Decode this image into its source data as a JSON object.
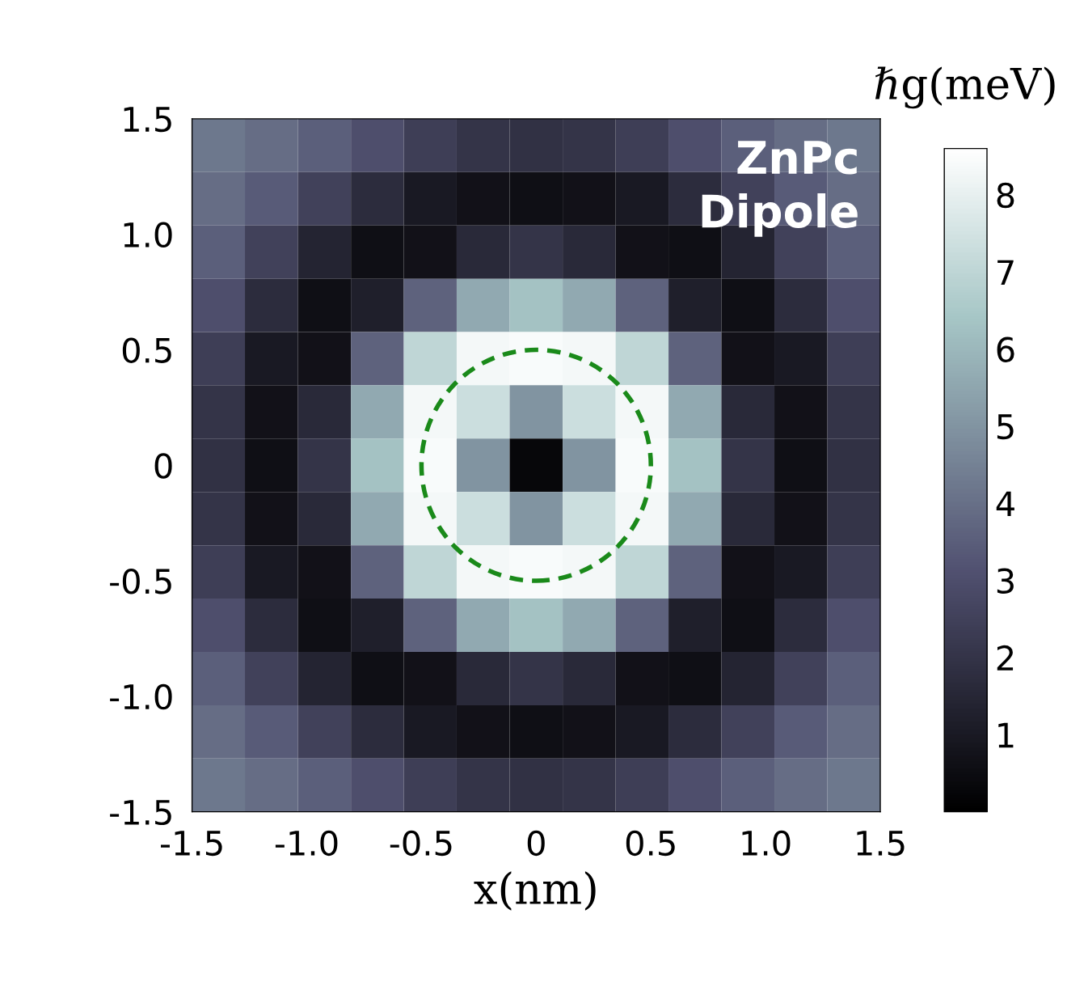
{
  "chart_data": {
    "type": "heatmap",
    "x": [
      -1.385,
      -1.154,
      -0.923,
      -0.692,
      -0.462,
      -0.231,
      0,
      0.231,
      0.462,
      0.692,
      0.923,
      1.154,
      1.385
    ],
    "y": [
      1.385,
      1.154,
      0.923,
      0.692,
      0.462,
      0.231,
      0,
      -0.231,
      -0.462,
      -0.692,
      -0.923,
      -1.154,
      -1.385
    ],
    "cells": [
      [
        4.2,
        3.9,
        3.5,
        3.0,
        2.4,
        2.0,
        1.9,
        2.0,
        2.4,
        3.0,
        3.5,
        3.9,
        4.2
      ],
      [
        3.9,
        3.4,
        2.5,
        1.7,
        1.0,
        0.7,
        0.6,
        0.7,
        1.0,
        1.7,
        2.5,
        3.4,
        3.9
      ],
      [
        3.5,
        2.5,
        1.4,
        0.6,
        0.7,
        1.6,
        2.0,
        1.6,
        0.7,
        0.6,
        1.4,
        2.5,
        3.5
      ],
      [
        3.0,
        1.7,
        0.6,
        1.2,
        3.6,
        5.6,
        6.3,
        5.6,
        3.6,
        1.2,
        0.6,
        1.7,
        3.0
      ],
      [
        2.4,
        1.0,
        0.7,
        3.6,
        7.0,
        8.3,
        8.4,
        8.3,
        7.0,
        3.6,
        0.7,
        1.0,
        2.4
      ],
      [
        2.0,
        0.7,
        1.6,
        5.6,
        8.3,
        7.3,
        5.0,
        7.3,
        8.3,
        5.6,
        1.6,
        0.7,
        2.0
      ],
      [
        1.9,
        0.6,
        2.0,
        6.3,
        8.4,
        5.0,
        0.3,
        5.0,
        8.4,
        6.3,
        2.0,
        0.6,
        1.9
      ],
      [
        2.0,
        0.7,
        1.6,
        5.6,
        8.3,
        7.3,
        5.0,
        7.3,
        8.3,
        5.6,
        1.6,
        0.7,
        2.0
      ],
      [
        2.4,
        1.0,
        0.7,
        3.6,
        7.0,
        8.3,
        8.4,
        8.3,
        7.0,
        3.6,
        0.7,
        1.0,
        2.4
      ],
      [
        3.0,
        1.7,
        0.6,
        1.2,
        3.6,
        5.6,
        6.3,
        5.6,
        3.6,
        1.2,
        0.6,
        1.7,
        3.0
      ],
      [
        3.5,
        2.5,
        1.4,
        0.6,
        0.7,
        1.6,
        2.0,
        1.6,
        0.7,
        0.6,
        1.4,
        2.5,
        3.5
      ],
      [
        3.9,
        3.4,
        2.5,
        1.7,
        1.0,
        0.7,
        0.6,
        0.7,
        1.0,
        1.7,
        2.5,
        3.4,
        3.9
      ],
      [
        4.2,
        3.9,
        3.5,
        3.0,
        2.4,
        2.0,
        1.9,
        2.0,
        2.4,
        3.0,
        3.5,
        3.9,
        4.2
      ]
    ],
    "clim": [
      0,
      8.6
    ],
    "cticks": [
      1,
      2,
      3,
      4,
      5,
      6,
      7,
      8
    ],
    "clabel": "ℏg(meV)",
    "xlabel": "x(nm)",
    "xlim": [
      -1.5,
      1.5
    ],
    "ylim": [
      -1.5,
      1.5
    ],
    "xticks": [
      {
        "value": -1.5,
        "label": "-1.5"
      },
      {
        "value": -1.0,
        "label": "-1.0"
      },
      {
        "value": -0.5,
        "label": "-0.5"
      },
      0,
      0.5,
      {
        "value": 1.0,
        "label": "1.0"
      },
      1.5
    ],
    "yticks": [
      {
        "value": -1.5,
        "label": "-1.5"
      },
      {
        "value": -1.0,
        "label": "-1.0"
      },
      {
        "value": -0.5,
        "label": "-0.5"
      },
      0,
      0.5,
      {
        "value": 1.0,
        "label": "1.0"
      },
      1.5
    ],
    "annotations": [
      "ZnPc\nDipole"
    ],
    "grid": false
  }
}
